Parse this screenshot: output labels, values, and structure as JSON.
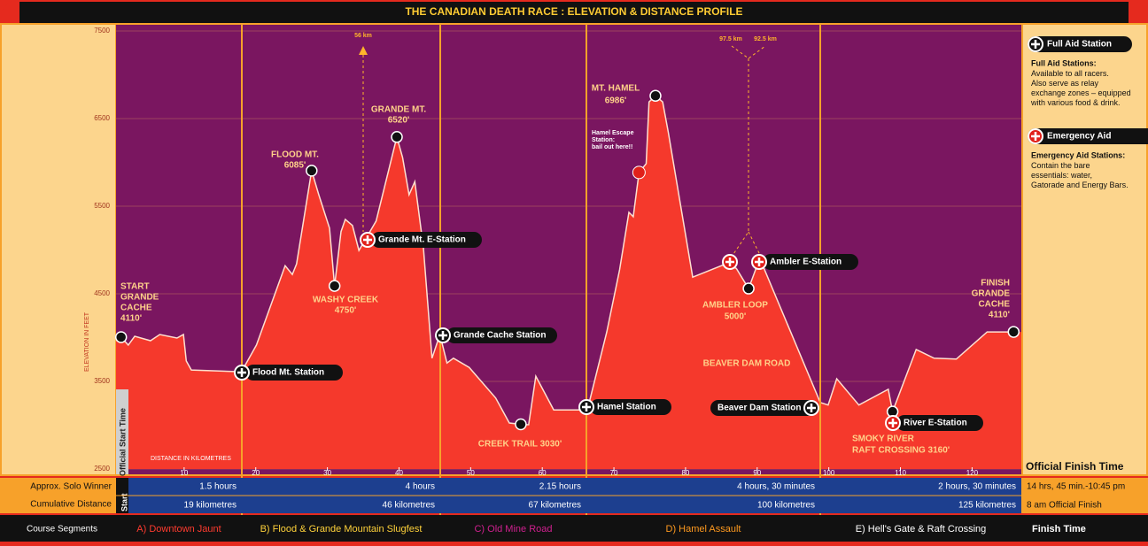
{
  "chart_data": {
    "type": "area",
    "title": "THE CANADIAN DEATH RACE : ELEVATION & DISTANCE PROFILE",
    "y_label": "ELEVATION IN FEET",
    "x_label": "DISTANCE IN KILOMETRES",
    "x": [
      0.5,
      1.2,
      2.2,
      3.1,
      5.3,
      6.6,
      9.0,
      9.9,
      10.3,
      11.0,
      18.0,
      20.1,
      24.1,
      25.1,
      25.7,
      27.8,
      28.8,
      30.3,
      31.0,
      31.9,
      32.5,
      33.5,
      34.4,
      35.2,
      36.8,
      39.7,
      40.5,
      41.4,
      42.2,
      43.4,
      44.6,
      45.7,
      46.7,
      47.6,
      49.8,
      53.5,
      55.4,
      57.0,
      58.1,
      59.1,
      61.6,
      66.3,
      69.0,
      70.8,
      72.1,
      72.7,
      73.5,
      74.5,
      74.9,
      75.8,
      76.8,
      77.6,
      81.0,
      85.6,
      87.1,
      88.8,
      90.0,
      90.9,
      98.8,
      99.9,
      101.1,
      104.2,
      108.3,
      108.9,
      112.2,
      114.7,
      117.8,
      122.1,
      125.8
    ],
    "values": [
      3965,
      4005,
      3915,
      4015,
      3965,
      4035,
      3995,
      4035,
      3733,
      3630,
      3610,
      3915,
      4820,
      4720,
      4840,
      5905,
      5630,
      5250,
      4590,
      5210,
      5350,
      5280,
      4995,
      5105,
      5330,
      6290,
      6055,
      5630,
      5780,
      5025,
      3765,
      4035,
      3710,
      3765,
      3660,
      3310,
      3025,
      3010,
      3005,
      3560,
      3175,
      3175,
      4065,
      4775,
      5430,
      5380,
      5885,
      5985,
      6690,
      6760,
      6690,
      6340,
      4690,
      4840,
      4790,
      4560,
      4825,
      4800,
      3260,
      3230,
      3530,
      3230,
      3410,
      3155,
      3865,
      3765,
      3755,
      4065,
      4065
    ],
    "color": "#f5392c",
    "background": "#7a1660",
    "xlim": [
      0,
      127
    ],
    "ylim": [
      2500,
      7500
    ],
    "xticks": [
      10,
      20,
      30,
      40,
      50,
      60,
      70,
      80,
      90,
      100,
      110,
      120
    ],
    "yticks": [
      2500,
      3500,
      4500,
      5500,
      6500,
      7500
    ],
    "grid": true
  },
  "annotations": [
    [
      "START",
      "GRANDE",
      "CACHE",
      "4110'"
    ],
    [
      "FLOOD MT.",
      "6085'"
    ],
    [
      "WASHY CREEK",
      "4750'"
    ],
    [
      "GRANDE MT.",
      "6520'"
    ],
    [
      "CREEK TRAIL 3030'"
    ],
    [
      "MT. HAMEL",
      "6986'"
    ],
    [
      "Hamel Escape",
      "Station:",
      "bail out here!!"
    ],
    [
      "AMBLER LOOP",
      "5000'"
    ],
    [
      "BEAVER DAM ROAD"
    ],
    [
      "SMOKY RIVER",
      "RAFT CROSSING 3160'"
    ],
    [
      "FINISH",
      "GRANDE",
      "CACHE",
      "4110'"
    ],
    [
      "56 km"
    ],
    [
      "97.5 km"
    ],
    [
      "92.5 km"
    ]
  ],
  "full_aid_stations": [
    "Flood Mt. Station",
    "Grande Cache Station",
    "Hamel Station",
    "Beaver Dam Station"
  ],
  "emergency_aid_stations": [
    "Grande Mt. E-Station",
    "Ambler E-Station",
    "River E-Station"
  ],
  "start_label": "Official Start Time",
  "legend": {
    "full_title": "Full Aid Station",
    "full_heading": "Full Aid Stations:",
    "full_text": "Available to all racers. Also serve as relay exchange zones – equipped with various food & drink.",
    "emergency_title": "Emergency Aid",
    "emergency_heading": "Emergency Aid Stations:",
    "emergency_text": "Contain the bare essentials: water, Gatorade and Energy Bars."
  },
  "table": {
    "finish_header": "Official Finish Time",
    "start_label": "Start",
    "row_labels": [
      "Approx. Solo Winner",
      "Cumulative Distance",
      "Course Segments"
    ],
    "segments": [
      {
        "name": "A) Downtown Jaunt",
        "time": "1.5 hours",
        "distance": "19 kilometres",
        "color": "#ff3b2f"
      },
      {
        "name": "B) Flood & Grande Mountain Slugfest",
        "time": "4 hours",
        "distance": "46 kilometres",
        "color": "#ffd23a"
      },
      {
        "name": "C) Old Mine Road",
        "time": "2.15 hours",
        "distance": "67 kilometres",
        "color": "#d0208f"
      },
      {
        "name": "D) Hamel Assault",
        "time": "4 hours, 30 minutes",
        "distance": "100 kilometres",
        "color": "#ff9a1f"
      },
      {
        "name": "E) Hell's Gate & Raft Crossing",
        "time": "2 hours, 30 minutes",
        "distance": "125 kilometres",
        "color": "#ffffff"
      }
    ],
    "finish": {
      "time": "14 hrs, 45 min.-10:45 pm",
      "distance": "8 am Official Finish",
      "label": "Finish Time"
    }
  }
}
